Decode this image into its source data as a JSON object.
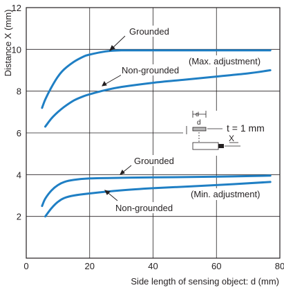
{
  "chart_data": {
    "type": "line",
    "xlabel": "Side length of sensing object: d (mm)",
    "ylabel": "Distance X (mm)",
    "xlim": [
      0,
      80
    ],
    "ylim": [
      0,
      12
    ],
    "xticks": [
      "0",
      "20",
      "40",
      "60",
      "80"
    ],
    "yticks": [
      "2",
      "4",
      "6",
      "8",
      "10",
      "12"
    ],
    "grid": true,
    "series": [
      {
        "group": "Max. adjustment",
        "label": "Grounded",
        "color": "#1f7fc4",
        "points": [
          [
            5,
            7.2
          ],
          [
            6,
            7.6
          ],
          [
            8,
            8.2
          ],
          [
            10,
            8.7
          ],
          [
            12,
            9.05
          ],
          [
            15,
            9.4
          ],
          [
            18,
            9.65
          ],
          [
            20,
            9.75
          ],
          [
            25,
            9.9
          ],
          [
            30,
            9.95
          ],
          [
            40,
            9.95
          ],
          [
            60,
            9.95
          ],
          [
            77,
            9.95
          ]
        ]
      },
      {
        "group": "Max. adjustment",
        "label": "Non-grounded",
        "color": "#1f7fc4",
        "points": [
          [
            6,
            6.3
          ],
          [
            8,
            6.7
          ],
          [
            10,
            7.0
          ],
          [
            12,
            7.25
          ],
          [
            15,
            7.55
          ],
          [
            18,
            7.75
          ],
          [
            20,
            7.85
          ],
          [
            25,
            8.05
          ],
          [
            30,
            8.2
          ],
          [
            40,
            8.4
          ],
          [
            50,
            8.55
          ],
          [
            60,
            8.7
          ],
          [
            70,
            8.85
          ],
          [
            77,
            9.0
          ]
        ]
      },
      {
        "group": "Min. adjustment",
        "label": "Grounded",
        "color": "#1f7fc4",
        "points": [
          [
            5,
            2.5
          ],
          [
            6,
            2.85
          ],
          [
            8,
            3.25
          ],
          [
            10,
            3.5
          ],
          [
            12,
            3.65
          ],
          [
            15,
            3.75
          ],
          [
            20,
            3.82
          ],
          [
            30,
            3.85
          ],
          [
            40,
            3.87
          ],
          [
            60,
            3.9
          ],
          [
            77,
            3.95
          ]
        ]
      },
      {
        "group": "Min. adjustment",
        "label": "Non-grounded",
        "color": "#1f7fc4",
        "points": [
          [
            6,
            2.0
          ],
          [
            8,
            2.4
          ],
          [
            10,
            2.7
          ],
          [
            12,
            2.88
          ],
          [
            15,
            3.0
          ],
          [
            20,
            3.1
          ],
          [
            30,
            3.25
          ],
          [
            40,
            3.35
          ],
          [
            60,
            3.5
          ],
          [
            77,
            3.65
          ]
        ]
      }
    ],
    "annotations": {
      "max_grounded": "Grounded",
      "max_non_grounded": "Non-grounded",
      "max_adjustment": "(Max. adjustment)",
      "min_grounded": "Grounded",
      "min_non_grounded": "Non-grounded",
      "min_adjustment": "(Min. adjustment)",
      "thickness": "t = 1 mm",
      "inset_d": "d",
      "inset_x": "X"
    }
  }
}
